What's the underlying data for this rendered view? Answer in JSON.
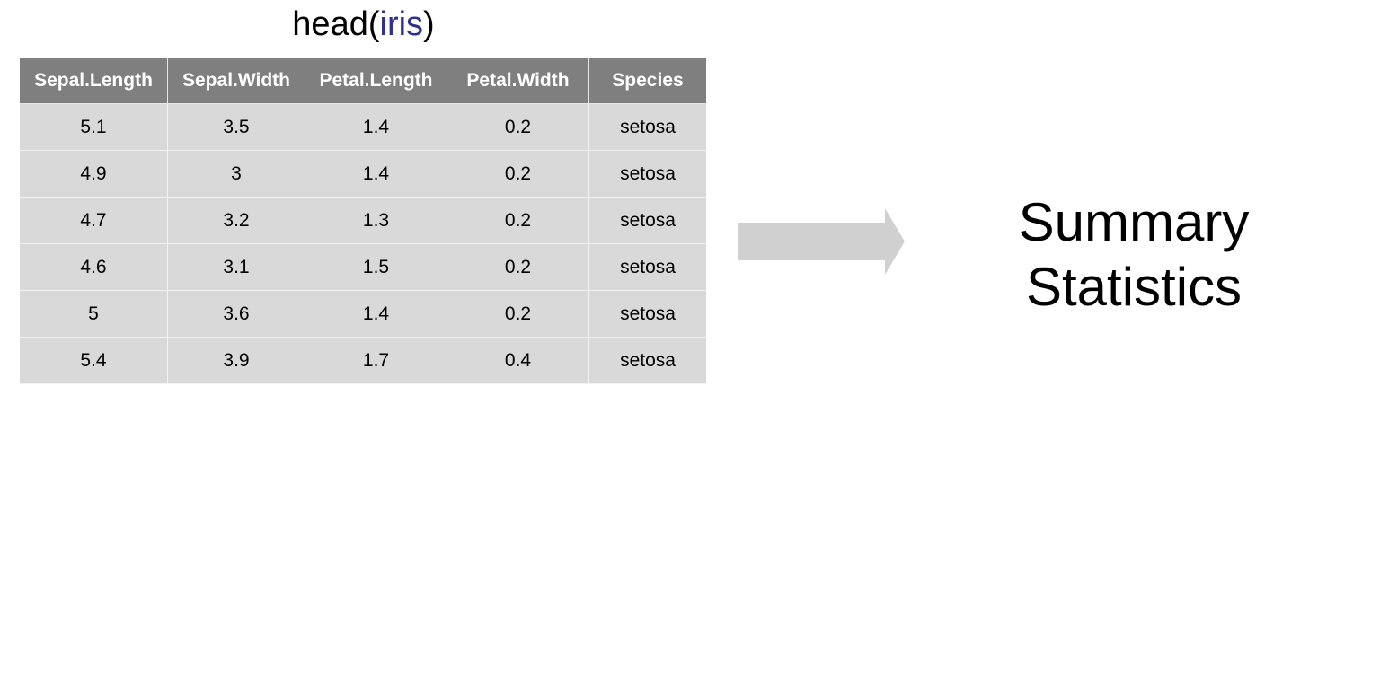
{
  "title": {
    "func": "head(",
    "arg": "iris",
    "close": ")"
  },
  "table": {
    "headers": [
      "Sepal.Length",
      "Sepal.Width",
      "Petal.Length",
      "Petal.Width",
      "Species"
    ],
    "rows": [
      [
        "5.1",
        "3.5",
        "1.4",
        "0.2",
        "setosa"
      ],
      [
        "4.9",
        "3",
        "1.4",
        "0.2",
        "setosa"
      ],
      [
        "4.7",
        "3.2",
        "1.3",
        "0.2",
        "setosa"
      ],
      [
        "4.6",
        "3.1",
        "1.5",
        "0.2",
        "setosa"
      ],
      [
        "5",
        "3.6",
        "1.4",
        "0.2",
        "setosa"
      ],
      [
        "5.4",
        "3.9",
        "1.7",
        "0.4",
        "setosa"
      ]
    ]
  },
  "summary": {
    "line1": "Summary",
    "line2": "Statistics"
  },
  "colors": {
    "header_bg": "#7f7f7f",
    "cell_bg": "#d9d9d9",
    "arg_color": "#2e3192",
    "arrow_fill": "#d0d0d0"
  },
  "icons": {
    "arrow": "right-arrow-icon"
  }
}
